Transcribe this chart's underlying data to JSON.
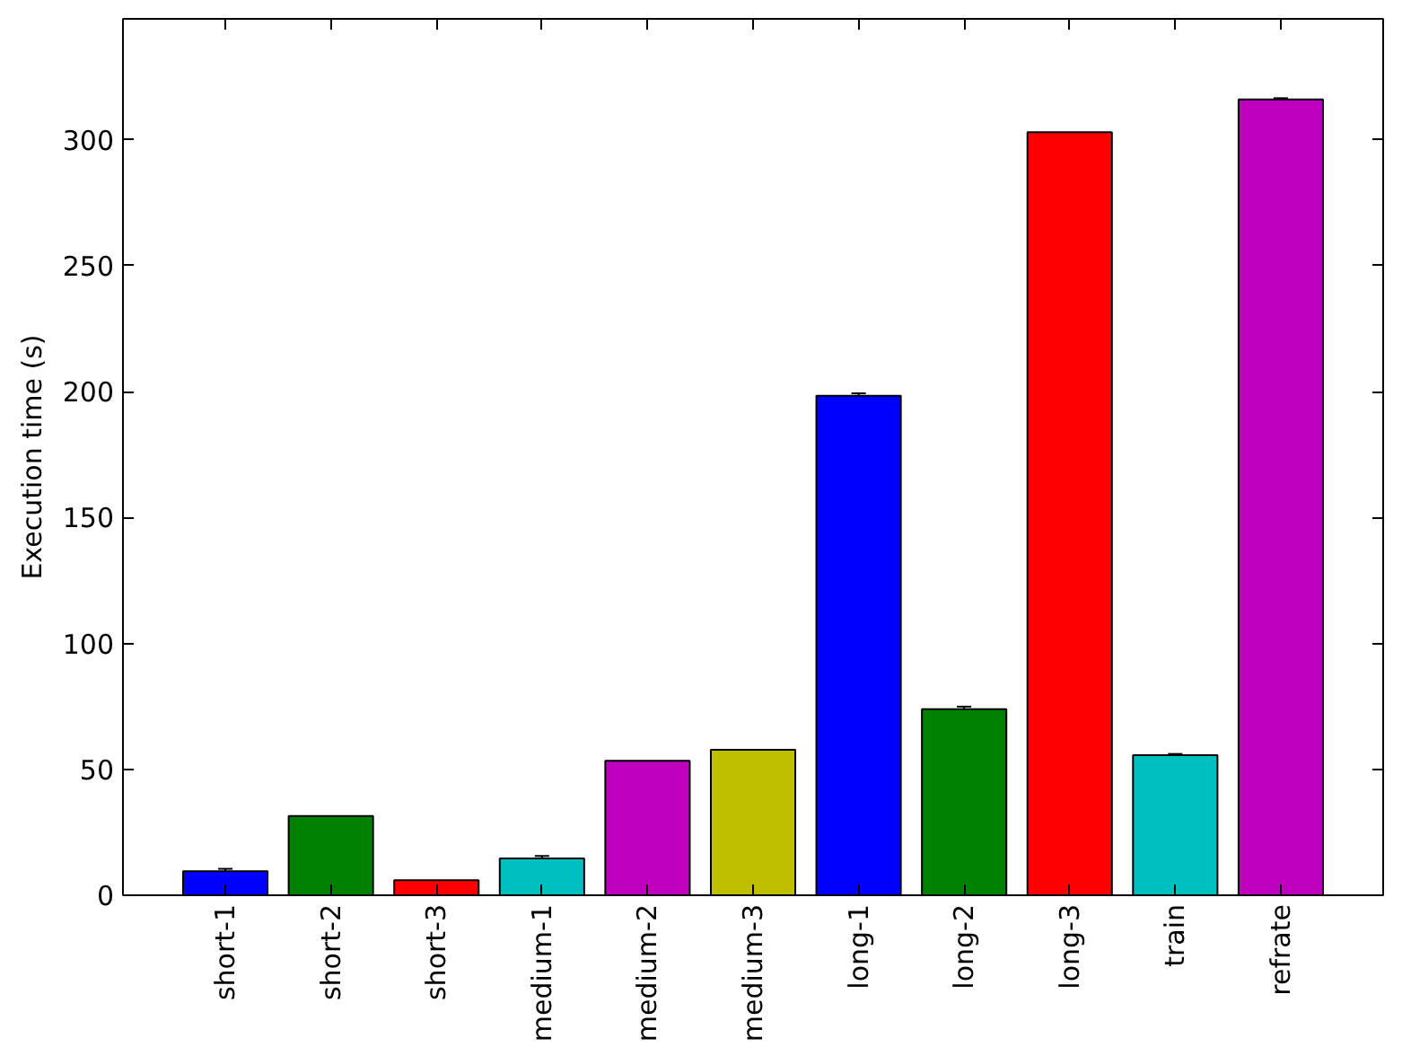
{
  "chart_data": {
    "type": "bar",
    "ylabel": "Execution time (s)",
    "categories": [
      "short-1",
      "short-2",
      "short-3",
      "medium-1",
      "medium-2",
      "medium-3",
      "long-1",
      "long-2",
      "long-3",
      "train",
      "refrate"
    ],
    "values": [
      9.5,
      31.5,
      6,
      14.6,
      53.4,
      57.8,
      198.3,
      73.9,
      303,
      55.6,
      316
    ],
    "errors": [
      1,
      null,
      null,
      1,
      null,
      null,
      1,
      1,
      null,
      0.5,
      0.5
    ],
    "colors": [
      "#0000ff",
      "#008000",
      "#ff0000",
      "#00bfbf",
      "#bf00bf",
      "#bfbf00",
      "#0000ff",
      "#008000",
      "#ff0000",
      "#00bfbf",
      "#bf00bf"
    ],
    "ylim": [
      0,
      348
    ],
    "yticks": [
      0,
      50,
      100,
      150,
      200,
      250,
      300
    ],
    "grid": false
  }
}
